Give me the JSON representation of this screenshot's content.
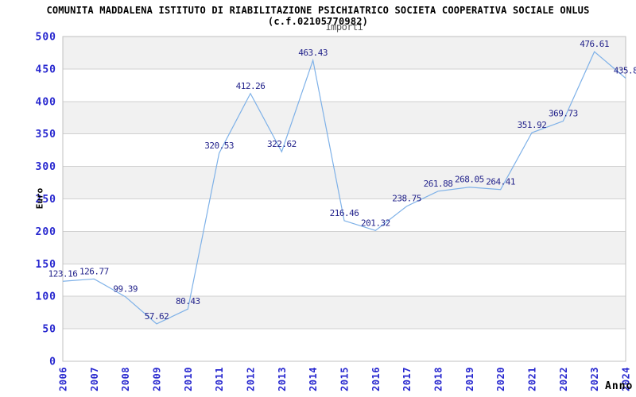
{
  "header": {
    "title": "COMUNITA MADDALENA ISTITUTO DI RIABILITAZIONE PSICHIATRICO SOCIETA COOPERATIVA SOCIALE ONLUS (c.f.02105770982)"
  },
  "chart_data": {
    "type": "line",
    "title": "Importi",
    "xlabel": "Anno",
    "ylabel": "Euro",
    "categories": [
      "2006",
      "2007",
      "2008",
      "2009",
      "2010",
      "2011",
      "2012",
      "2013",
      "2014",
      "2015",
      "2016",
      "2017",
      "2018",
      "2019",
      "2020",
      "2021",
      "2022",
      "2023",
      "2024"
    ],
    "values": [
      123.16,
      126.77,
      99.39,
      57.62,
      80.43,
      320.53,
      412.26,
      322.62,
      463.43,
      216.46,
      201.32,
      238.75,
      261.88,
      268.05,
      264.41,
      351.92,
      369.73,
      476.61,
      435.8
    ],
    "point_labels": [
      "123.16",
      "126.77",
      "99.39",
      "57.62",
      "80.43",
      "320.53",
      "412.26",
      "322.62",
      "463.43",
      "216.46",
      "201.32",
      "238.75",
      "261.88",
      "268.05",
      "264.41",
      "351.92",
      "369.73",
      "476.61",
      "435.8"
    ],
    "ylim": [
      0,
      500
    ],
    "ytick_step": 50,
    "grid": true,
    "legend_position": "none",
    "colors": {
      "line": "#7eb1e8",
      "data_label": "#23238b",
      "tick_label": "#2727cf",
      "axis_title": "#000000",
      "subtitle": "#555555",
      "band": "#f1f1f1",
      "gridline": "#d0d0d0",
      "border": "#c0c0c0",
      "background": "#ffffff"
    }
  }
}
